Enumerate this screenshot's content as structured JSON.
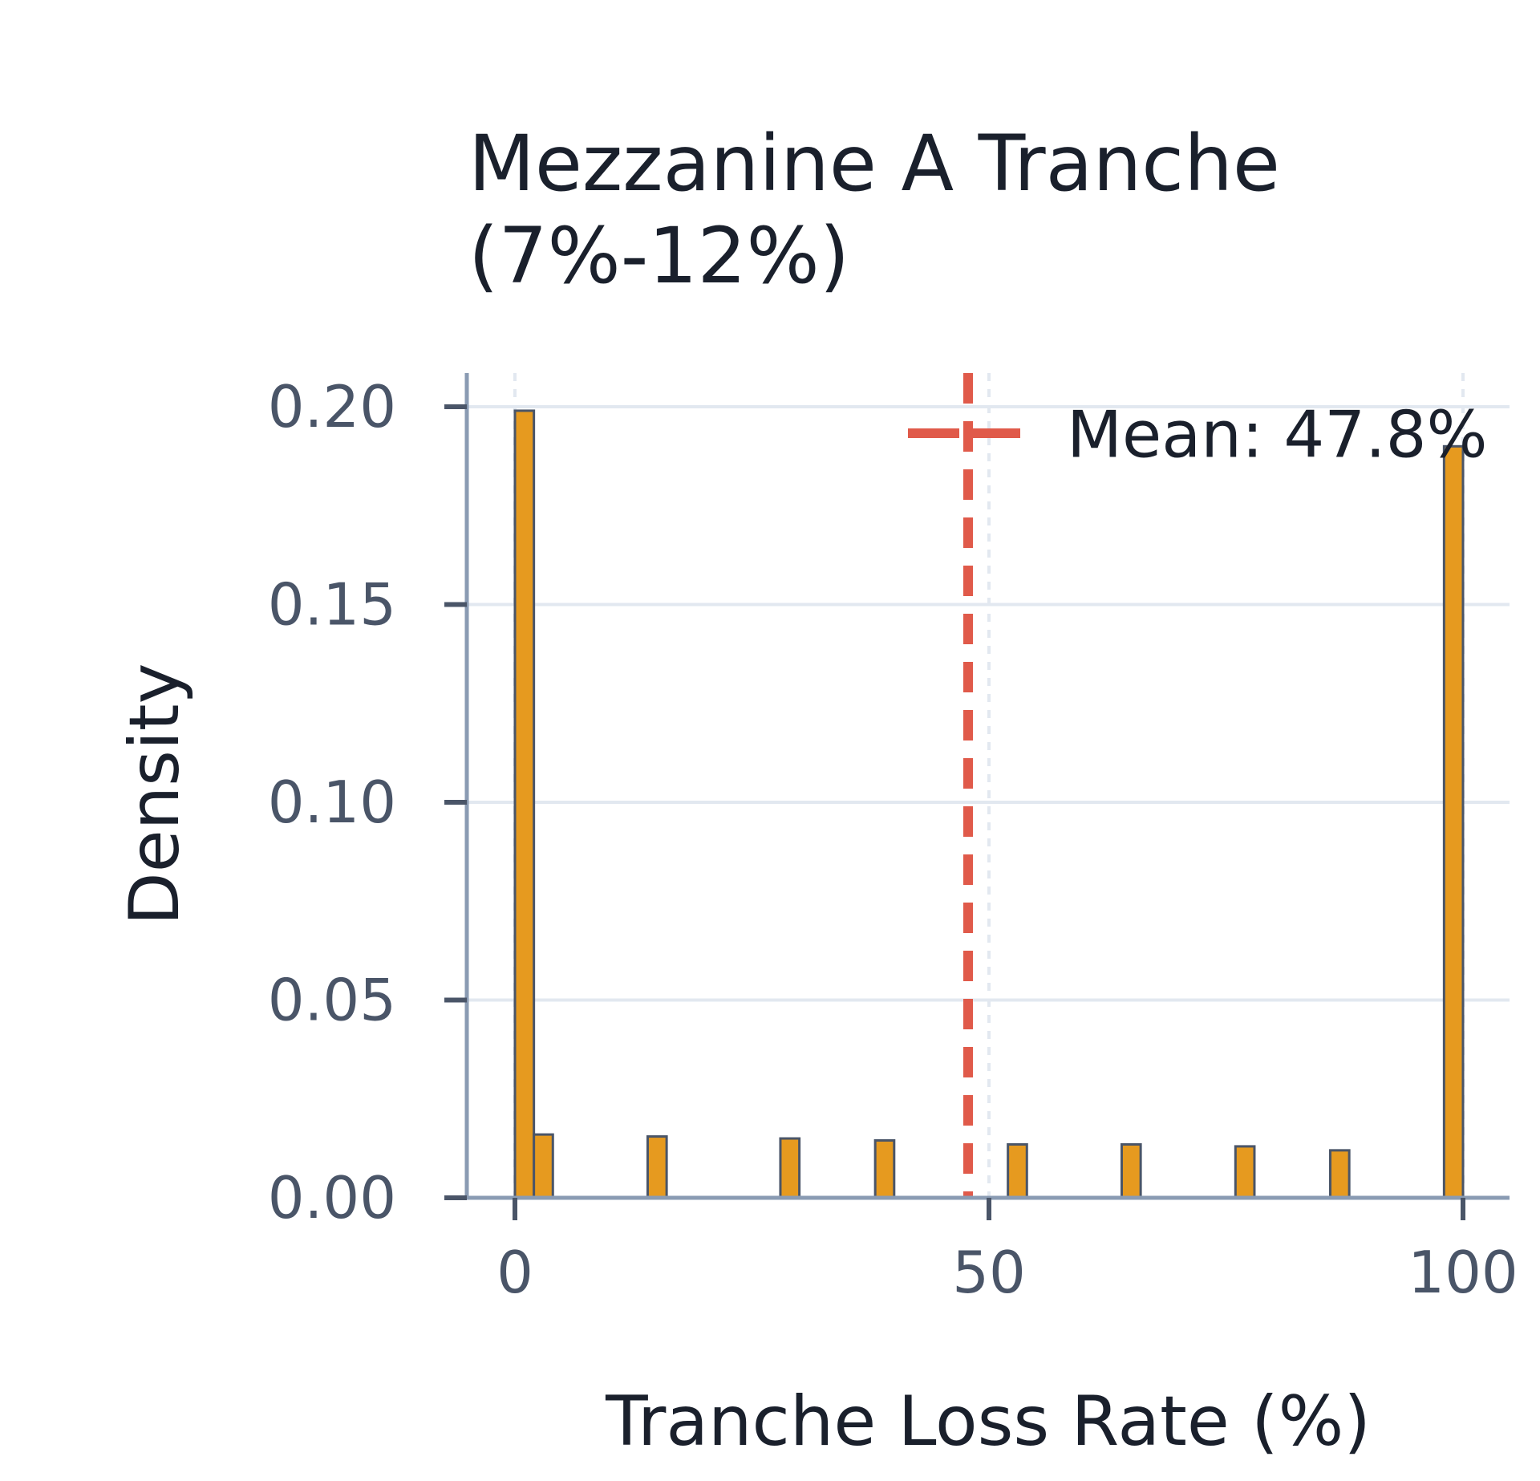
{
  "chart_data": {
    "type": "bar",
    "title": "Mezzanine A Tranche\n(7%-12%)",
    "xlabel": "Tranche Loss Rate (%)",
    "ylabel": "Density",
    "xlim": [
      -5,
      105
    ],
    "ylim": [
      0,
      0.2
    ],
    "xticks": [
      0,
      50,
      100
    ],
    "xtick_labels": [
      "0",
      "50",
      "100"
    ],
    "yticks": [
      0,
      0.05,
      0.1,
      0.15,
      0.2
    ],
    "ytick_labels": [
      "0.00",
      "0.05",
      "0.10",
      "0.15",
      "0.20"
    ],
    "grid": true,
    "legend_position": "top-right",
    "bins": [
      {
        "start": 0.0,
        "end": 2.0,
        "density": 0.199
      },
      {
        "start": 2.0,
        "end": 4.0,
        "density": 0.016
      },
      {
        "start": 14.0,
        "end": 16.0,
        "density": 0.0155
      },
      {
        "start": 28.0,
        "end": 30.0,
        "density": 0.015
      },
      {
        "start": 38.0,
        "end": 40.0,
        "density": 0.0145
      },
      {
        "start": 52.0,
        "end": 54.0,
        "density": 0.0135
      },
      {
        "start": 64.0,
        "end": 66.0,
        "density": 0.0135
      },
      {
        "start": 76.0,
        "end": 78.0,
        "density": 0.013
      },
      {
        "start": 86.0,
        "end": 88.0,
        "density": 0.012
      },
      {
        "start": 98.0,
        "end": 100.0,
        "density": 0.19
      }
    ],
    "mean_line": {
      "x": 47.8,
      "label": "Mean: 47.8%"
    },
    "colors": {
      "bar_fill": "#E69A1F",
      "bar_edge": "#4A5568",
      "mean_line": "#E05A4A",
      "axis": "#8A9BB3",
      "grid": "#E2E8F0",
      "tick_text": "#4A5568",
      "label_text": "#1A202C"
    }
  }
}
